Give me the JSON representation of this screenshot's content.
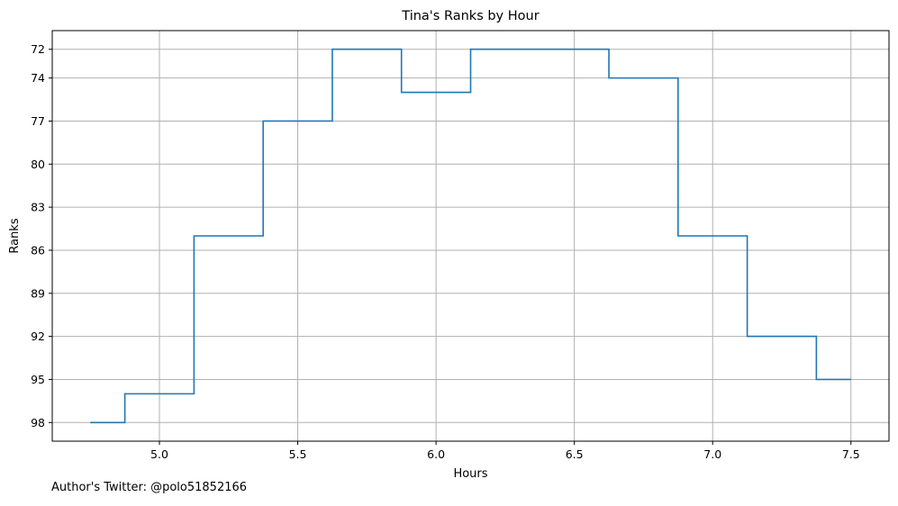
{
  "chart_data": {
    "type": "line",
    "drawstyle": "steps-mid",
    "title": "Tina's Ranks by Hour",
    "xlabel": "Hours",
    "ylabel": "Ranks",
    "x": [
      4.75,
      5.0,
      5.25,
      5.5,
      5.75,
      6.0,
      6.25,
      6.5,
      6.75,
      7.0,
      7.25,
      7.5
    ],
    "series": [
      {
        "name": "",
        "color": "#1f77b4",
        "values": [
          98,
          96,
          85,
          77,
          72,
          75,
          72,
          72,
          74,
          85,
          92,
          95
        ]
      }
    ],
    "xticks": [
      5.0,
      5.5,
      6.0,
      6.5,
      7.0,
      7.5
    ],
    "xtick_labels": [
      "5.0",
      "5.5",
      "6.0",
      "6.5",
      "7.0",
      "7.5"
    ],
    "yticks": [
      72,
      74,
      77,
      80,
      83,
      86,
      89,
      92,
      95,
      98
    ],
    "ytick_labels": [
      "72",
      "74",
      "77",
      "80",
      "83",
      "86",
      "89",
      "92",
      "95",
      "98"
    ],
    "xlim": [
      4.6125,
      7.6375
    ],
    "ylim": [
      99.3,
      70.7
    ],
    "y_inverted": true,
    "grid": true,
    "legend": false
  },
  "footer": {
    "note": "Author's Twitter: @polo51852166"
  }
}
